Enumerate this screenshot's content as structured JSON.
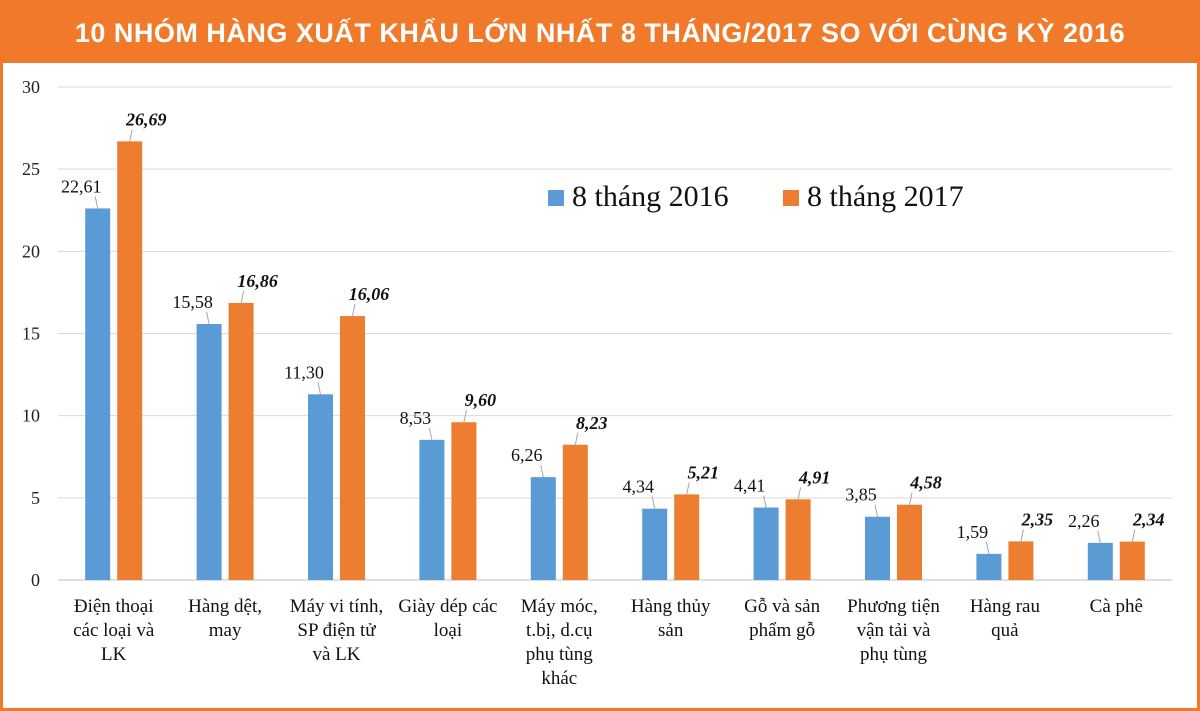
{
  "chart_data": {
    "type": "bar",
    "title": "10 NHÓM HÀNG XUẤT KHẨU LỚN NHẤT 8 THÁNG/2017 SO VỚI CÙNG KỲ 2016",
    "xlabel": "",
    "ylabel": "",
    "ylim": [
      0,
      30
    ],
    "yticks": [
      "0",
      "5",
      "10",
      "15",
      "20",
      "25",
      "30"
    ],
    "grid": true,
    "legend_position": "top-right",
    "categories": [
      [
        "Điện thoại",
        "các loại và",
        "LK"
      ],
      [
        "Hàng dệt,",
        "may"
      ],
      [
        "Máy vi tính,",
        "SP điện tử",
        "và LK"
      ],
      [
        "Giày dép các",
        "loại"
      ],
      [
        "Máy móc,",
        "t.bị, d.cụ",
        "phụ tùng",
        "khác"
      ],
      [
        "Hàng thủy",
        "sản"
      ],
      [
        "Gỗ và sản",
        "phẩm gỗ"
      ],
      [
        "Phương tiện",
        "vận tải và",
        "phụ tùng"
      ],
      [
        "Hàng rau",
        "quả"
      ],
      [
        "Cà phê"
      ]
    ],
    "series": [
      {
        "name": "8 tháng 2016",
        "color": "#5b9bd5",
        "values": [
          22.61,
          15.58,
          11.3,
          8.53,
          6.26,
          4.34,
          4.41,
          3.85,
          1.59,
          2.26
        ],
        "labels": [
          "22,61",
          "15,58",
          "11,30",
          "8,53",
          "6,26",
          "4,34",
          "4,41",
          "3,85",
          "1,59",
          "2,26"
        ]
      },
      {
        "name": "8 tháng 2017",
        "color": "#ed7d31",
        "values": [
          26.69,
          16.86,
          16.06,
          9.6,
          8.23,
          5.21,
          4.91,
          4.58,
          2.35,
          2.34
        ],
        "labels": [
          "26,69",
          "16,86",
          "16,06",
          "9,60",
          "8,23",
          "5,21",
          "4,91",
          "4,58",
          "2,35",
          "2,34"
        ]
      }
    ]
  }
}
